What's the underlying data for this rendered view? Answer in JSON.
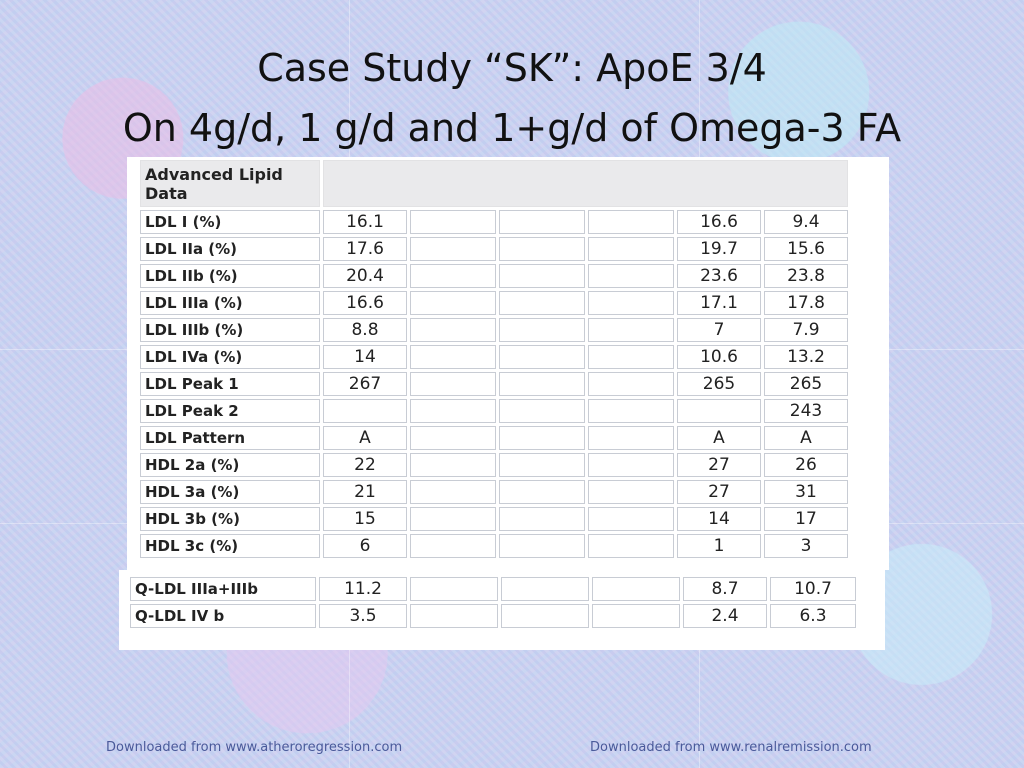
{
  "slide": {
    "title_line1": "Case Study “SK”: ApoE 3/4",
    "title_line2": "On 4g/d, 1 g/d and 1+g/d of Omega-3 FA"
  },
  "table": {
    "header": "Advanced Lipid Data",
    "rows": [
      {
        "label": "LDL I (%)",
        "c1": "16.1",
        "c2": "",
        "c3": "",
        "c4": "16.6",
        "c5": "9.4"
      },
      {
        "label": "LDL IIa (%)",
        "c1": "17.6",
        "c2": "",
        "c3": "",
        "c4": "19.7",
        "c5": "15.6"
      },
      {
        "label": "LDL IIb (%)",
        "c1": "20.4",
        "c2": "",
        "c3": "",
        "c4": "23.6",
        "c5": "23.8"
      },
      {
        "label": "LDL IIIa (%)",
        "c1": "16.6",
        "c2": "",
        "c3": "",
        "c4": "17.1",
        "c5": "17.8"
      },
      {
        "label": "LDL IIIb (%)",
        "c1": "8.8",
        "c2": "",
        "c3": "",
        "c4": "7",
        "c5": "7.9"
      },
      {
        "label": "LDL IVa (%)",
        "c1": "14",
        "c2": "",
        "c3": "",
        "c4": "10.6",
        "c5": "13.2"
      },
      {
        "label": "LDL Peak 1",
        "c1": "267",
        "c2": "",
        "c3": "",
        "c4": "265",
        "c5": "265"
      },
      {
        "label": "LDL Peak 2",
        "c1": "",
        "c2": "",
        "c3": "",
        "c4": "",
        "c5": "243"
      },
      {
        "label": "LDL Pattern",
        "c1": "A",
        "c2": "",
        "c3": "",
        "c4": "A",
        "c5": "A"
      },
      {
        "label": "HDL 2a (%)",
        "c1": "22",
        "c2": "",
        "c3": "",
        "c4": "27",
        "c5": "26"
      },
      {
        "label": "HDL 3a (%)",
        "c1": "21",
        "c2": "",
        "c3": "",
        "c4": "27",
        "c5": "31"
      },
      {
        "label": "HDL 3b (%)",
        "c1": "15",
        "c2": "",
        "c3": "",
        "c4": "14",
        "c5": "17"
      },
      {
        "label": "HDL 3c (%)",
        "c1": "6",
        "c2": "",
        "c3": "",
        "c4": "1",
        "c5": "3"
      }
    ]
  },
  "qtable": {
    "rows": [
      {
        "label": "Q-LDL IIIa+IIIb",
        "c1": "11.2",
        "c2": "",
        "c3": "",
        "c4": "8.7",
        "c5": "10.7"
      },
      {
        "label": "Q-LDL IV b",
        "c1": "3.5",
        "c2": "",
        "c3": "",
        "c4": "2.4",
        "c5": "6.3"
      }
    ]
  },
  "footer": {
    "left": "Downloaded from www.atheroregression.com",
    "right": "Downloaded from www.renalremission.com"
  }
}
